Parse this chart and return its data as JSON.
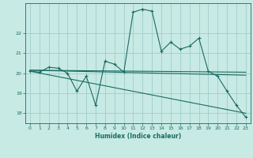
{
  "xlabel": "Humidex (Indice chaleur)",
  "bg_color": "#c8eae4",
  "grid_color": "#a0cccc",
  "line_color": "#1a6b60",
  "xlim": [
    -0.5,
    23.5
  ],
  "ylim": [
    17.5,
    23.5
  ],
  "yticks": [
    18,
    19,
    20,
    21,
    22
  ],
  "xticks": [
    0,
    1,
    2,
    3,
    4,
    5,
    6,
    7,
    8,
    9,
    10,
    11,
    12,
    13,
    14,
    15,
    16,
    17,
    18,
    19,
    20,
    21,
    22,
    23
  ],
  "series1_x": [
    0,
    1,
    2,
    3,
    4,
    5,
    6,
    7,
    8,
    9,
    10,
    11,
    12,
    13,
    14,
    15,
    16,
    17,
    18,
    19,
    20,
    21,
    22,
    23
  ],
  "series1_y": [
    20.1,
    20.05,
    20.3,
    20.25,
    20.0,
    19.1,
    19.85,
    18.4,
    20.6,
    20.45,
    20.05,
    23.05,
    23.2,
    23.1,
    21.1,
    21.55,
    21.2,
    21.35,
    21.75,
    20.1,
    19.85,
    19.1,
    18.4,
    17.8
  ],
  "trend1_x": [
    0,
    23
  ],
  "trend1_y": [
    20.15,
    20.05
  ],
  "trend2_x": [
    0,
    23
  ],
  "trend2_y": [
    20.15,
    19.9
  ],
  "trend3_x": [
    0,
    23
  ],
  "trend3_y": [
    20.1,
    18.0
  ]
}
